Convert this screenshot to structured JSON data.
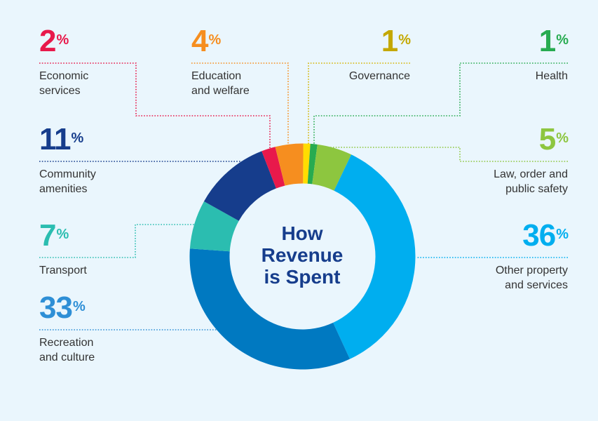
{
  "chart_data": {
    "type": "pie",
    "variant": "donut",
    "title": "How Revenue is Spent",
    "unit": "%",
    "legend": "labels around chart with dotted leader lines",
    "slices": [
      {
        "label": "Governance",
        "value": 1,
        "color": "#ffdd00",
        "label_color": "#c4a800"
      },
      {
        "label": "Health",
        "value": 1,
        "color": "#27ab50",
        "label_color": "#27ab50"
      },
      {
        "label": "Law, order and public safety",
        "value": 5,
        "color": "#8dc63f",
        "label_color": "#8dc63f"
      },
      {
        "label": "Other property and services",
        "value": 36,
        "color": "#00aeef",
        "label_color": "#00aeef"
      },
      {
        "label": "Recreation and culture",
        "value": 33,
        "color": "#0079c1",
        "label_color": "#2e8fd6"
      },
      {
        "label": "Transport",
        "value": 7,
        "color": "#2bbdb0",
        "label_color": "#2bbdb0"
      },
      {
        "label": "Community amenities",
        "value": 11,
        "color": "#163d8c",
        "label_color": "#163d8c"
      },
      {
        "label": "Economic services",
        "value": 2,
        "color": "#e8194b",
        "label_color": "#e8194b"
      },
      {
        "label": "Education and welfare",
        "value": 4,
        "color": "#f68e1f",
        "label_color": "#f68e1f"
      }
    ]
  },
  "labels": [
    {
      "key": "economic",
      "value": "2",
      "percent": "%",
      "text": "Economic\nservices",
      "slice": 7
    },
    {
      "key": "education",
      "value": "4",
      "percent": "%",
      "text": "Education\nand welfare",
      "slice": 8
    },
    {
      "key": "governance",
      "value": "1",
      "percent": "%",
      "text": "Governance",
      "slice": 0
    },
    {
      "key": "health",
      "value": "1",
      "percent": "%",
      "text": "Health",
      "slice": 1
    },
    {
      "key": "community",
      "value": "11",
      "percent": "%",
      "text": "Community\namenities",
      "slice": 6
    },
    {
      "key": "law",
      "value": "5",
      "percent": "%",
      "text": "Law, order and\npublic safety",
      "slice": 2
    },
    {
      "key": "transport",
      "value": "7",
      "percent": "%",
      "text": "Transport",
      "slice": 5
    },
    {
      "key": "other",
      "value": "36",
      "percent": "%",
      "text": "Other property\nand services",
      "slice": 3
    },
    {
      "key": "recreation",
      "value": "33",
      "percent": "%",
      "text": "Recreation\nand culture",
      "slice": 4
    }
  ],
  "center_title": "How\nRevenue\nis Spent",
  "background": "#eaf6fd"
}
